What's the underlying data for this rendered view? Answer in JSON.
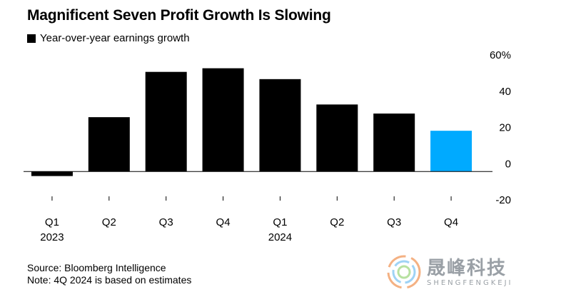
{
  "chart_data": {
    "type": "bar",
    "title": "Magnificent Seven Profit Growth Is Slowing",
    "legend": [
      {
        "label": "Year-over-year earnings growth",
        "color": "#000000"
      }
    ],
    "categories": [
      "Q1 2023",
      "Q2",
      "Q3",
      "Q4",
      "Q1 2024",
      "Q2",
      "Q3",
      "Q4"
    ],
    "category_labels": [
      {
        "line1": "Q1",
        "line2": "2023"
      },
      {
        "line1": "Q2",
        "line2": ""
      },
      {
        "line1": "Q3",
        "line2": ""
      },
      {
        "line1": "Q4",
        "line2": ""
      },
      {
        "line1": "Q1",
        "line2": "2024"
      },
      {
        "line1": "Q2",
        "line2": ""
      },
      {
        "line1": "Q3",
        "line2": ""
      },
      {
        "line1": "Q4",
        "line2": ""
      }
    ],
    "series": [
      {
        "name": "Year-over-year earnings growth",
        "values": [
          -2.5,
          30,
          55,
          57,
          51,
          37,
          32,
          22.5
        ]
      }
    ],
    "bar_colors": [
      "#000000",
      "#000000",
      "#000000",
      "#000000",
      "#000000",
      "#000000",
      "#000000",
      "#00aaff"
    ],
    "ylim": [
      -20,
      60
    ],
    "yticks": [
      {
        "value": 60,
        "label": "60%"
      },
      {
        "value": 40,
        "label": "40"
      },
      {
        "value": 20,
        "label": "20"
      },
      {
        "value": 0,
        "label": "0"
      },
      {
        "value": -20,
        "label": "-20"
      }
    ],
    "xlabel": "",
    "ylabel": "",
    "grid": false,
    "legend_position": "top-left"
  },
  "footer": {
    "source": "Source: Bloomberg Intelligence",
    "note": "Note: 4Q 2024 is based on estimates"
  },
  "watermark": {
    "chinese": "晟峰科技",
    "english": "SHENGFENGKEJI"
  }
}
